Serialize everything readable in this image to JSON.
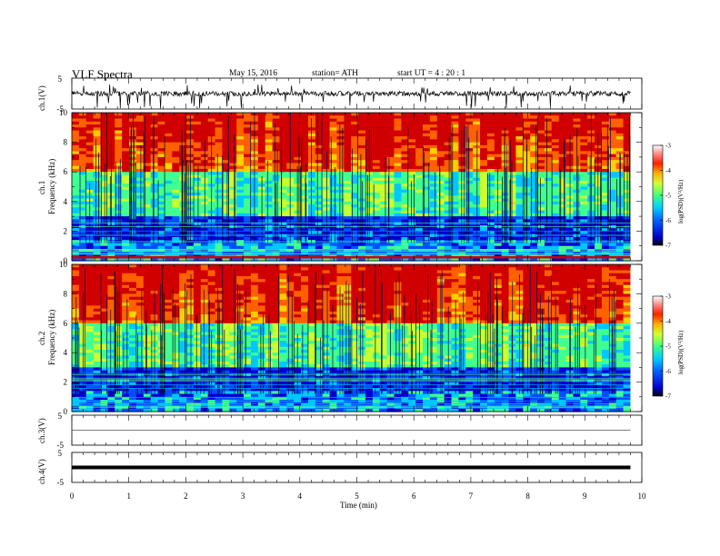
{
  "header": {
    "title": "VLF  Spectra",
    "date": "May 15,  2016",
    "station": "station= ATH",
    "start": "start  UT  =   4  : 20 : 1"
  },
  "panels": {
    "ch1_wave_ylabel": "ch.1(V)",
    "ch1_spec_ylabel_line1": "ch.1",
    "ch1_spec_ylabel_line2": "Frequency (kHz)",
    "ch2_spec_ylabel_line1": "ch.2",
    "ch2_spec_ylabel_line2": "Frequency (kHz)",
    "ch3_wave_ylabel": "ch.3(V)",
    "ch4_wave_ylabel": "ch.4(V)",
    "colorbar_label": "log(PSD)(V²/Hz)"
  },
  "chart_data": [
    {
      "type": "line",
      "name": "ch1-waveform",
      "ylabel": "ch.1(V)",
      "xlim": [
        0,
        10
      ],
      "ylim": [
        -5,
        5
      ],
      "yticks": [
        "5",
        "-5"
      ],
      "description_of_trace": "noisy signal centered near 0 V with spikes",
      "x_extent_min": 9.8
    },
    {
      "type": "heatmap",
      "name": "ch1-spectrogram",
      "ylabel": "Frequency (kHz)",
      "xlim": [
        0,
        10
      ],
      "ylim": [
        0,
        10
      ],
      "yticks": [
        "0",
        "2",
        "4",
        "6",
        "8",
        "10"
      ],
      "colorbar": {
        "ticks": [
          "-3",
          "-4",
          "-5",
          "-6",
          "-7"
        ],
        "range": [
          -7,
          -3
        ],
        "label": "log(PSD)(V²/Hz)"
      }
    },
    {
      "type": "heatmap",
      "name": "ch2-spectrogram",
      "ylabel": "Frequency (kHz)",
      "xlim": [
        0,
        10
      ],
      "ylim": [
        0,
        10
      ],
      "yticks": [
        "0",
        "2",
        "4",
        "6",
        "8",
        "10"
      ],
      "colorbar": {
        "ticks": [
          "-3",
          "-4",
          "-5",
          "-6",
          "-7"
        ],
        "range": [
          -7,
          -3
        ],
        "label": "log(PSD)(V²/Hz)"
      }
    },
    {
      "type": "line",
      "name": "ch3-waveform",
      "ylabel": "ch.3(V)",
      "xlim": [
        0,
        10
      ],
      "ylim": [
        -5,
        5
      ],
      "yticks": [
        "5",
        "-5"
      ],
      "level_v": 0
    },
    {
      "type": "line",
      "name": "ch4-waveform",
      "ylabel": "ch.4(V)",
      "xlim": [
        0,
        10
      ],
      "ylim": [
        -5,
        5
      ],
      "yticks": [
        "5",
        "-5"
      ],
      "level_v": 0
    }
  ],
  "xaxis": {
    "label": "Time  (min)",
    "ticks": [
      "0",
      "1",
      "2",
      "3",
      "4",
      "5",
      "6",
      "7",
      "8",
      "9",
      "10"
    ],
    "range": [
      0,
      10
    ]
  },
  "colors": {
    "colormap": [
      "#000060",
      "#0000d0",
      "#0050ff",
      "#00c8ff",
      "#40ff90",
      "#c8ff30",
      "#ffd000",
      "#ff6000",
      "#d00000",
      "#ffffff"
    ]
  }
}
